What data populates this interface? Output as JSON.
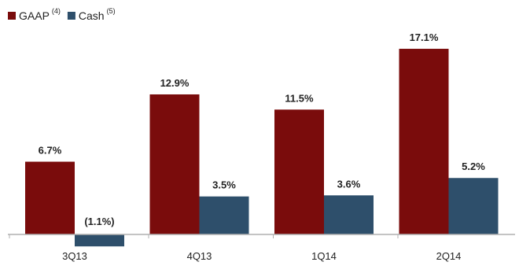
{
  "chart_data": {
    "type": "bar",
    "categories": [
      "3Q13",
      "4Q13",
      "1Q14",
      "2Q14"
    ],
    "series": [
      {
        "name": "GAAP",
        "note": "(4)",
        "color": "#7a0c0c",
        "values": [
          6.7,
          12.9,
          11.5,
          17.1
        ],
        "labels": [
          "6.7%",
          "12.9%",
          "11.5%",
          "17.1%"
        ]
      },
      {
        "name": "Cash",
        "note": "(5)",
        "color": "#2e4f6b",
        "values": [
          -1.1,
          3.5,
          3.6,
          5.2
        ],
        "labels": [
          "(1.1%)",
          "3.5%",
          "3.6%",
          "5.2%"
        ]
      }
    ],
    "ylim": [
      -1.1,
      17.1
    ],
    "grid": false,
    "legend": "top-left",
    "axis_color": "#b0b0b0"
  }
}
